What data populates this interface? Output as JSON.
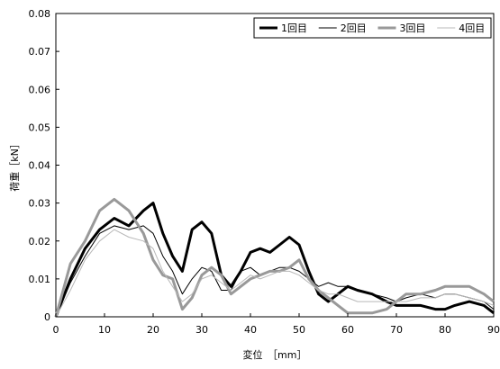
{
  "chart_data": {
    "type": "line",
    "title": "",
    "xlabel": "変位　［mm］",
    "ylabel": "荷重［kN］",
    "xlim": [
      0,
      90
    ],
    "ylim": [
      0,
      0.08
    ],
    "xticks": [
      "0",
      "10",
      "20",
      "30",
      "40",
      "50",
      "60",
      "70",
      "80",
      "90"
    ],
    "yticks": [
      "0",
      "0.01",
      "0.02",
      "0.03",
      "0.04",
      "0.05",
      "0.06",
      "0.07",
      "0.08"
    ],
    "grid": false,
    "legend_position": "top-right",
    "series": [
      {
        "name": "1回目",
        "color": "#000000",
        "x": [
          0,
          3,
          6,
          9,
          12,
          15,
          18,
          20,
          22,
          24,
          26,
          28,
          30,
          32,
          34,
          36,
          38,
          40,
          42,
          44,
          46,
          48,
          50,
          52,
          54,
          56,
          58,
          60,
          62,
          65,
          68,
          70,
          72,
          75,
          78,
          80,
          82,
          85,
          88,
          90
        ],
        "y": [
          0,
          0.01,
          0.018,
          0.023,
          0.026,
          0.024,
          0.028,
          0.03,
          0.022,
          0.016,
          0.012,
          0.023,
          0.025,
          0.022,
          0.011,
          0.008,
          0.012,
          0.017,
          0.018,
          0.017,
          0.019,
          0.021,
          0.019,
          0.012,
          0.006,
          0.004,
          0.006,
          0.008,
          0.007,
          0.006,
          0.004,
          0.003,
          0.003,
          0.003,
          0.002,
          0.002,
          0.003,
          0.004,
          0.003,
          0.001
        ]
      },
      {
        "name": "2回目",
        "color": "#000000",
        "x": [
          0,
          3,
          6,
          9,
          12,
          15,
          18,
          20,
          22,
          24,
          26,
          28,
          30,
          32,
          34,
          36,
          38,
          40,
          42,
          44,
          46,
          48,
          50,
          52,
          54,
          56,
          58,
          60,
          62,
          65,
          68,
          70,
          72,
          75,
          78,
          80,
          82,
          85,
          88,
          90
        ],
        "y": [
          0,
          0.009,
          0.016,
          0.022,
          0.024,
          0.023,
          0.024,
          0.022,
          0.016,
          0.012,
          0.006,
          0.01,
          0.013,
          0.012,
          0.007,
          0.007,
          0.012,
          0.013,
          0.011,
          0.012,
          0.013,
          0.013,
          0.012,
          0.01,
          0.008,
          0.009,
          0.008,
          0.008,
          0.007,
          0.006,
          0.005,
          0.004,
          0.005,
          0.006,
          0.005,
          0.006,
          0.006,
          0.005,
          0.004,
          0.002
        ]
      },
      {
        "name": "3回目",
        "color": "#999999",
        "x": [
          0,
          3,
          6,
          9,
          12,
          15,
          18,
          20,
          22,
          24,
          26,
          28,
          30,
          32,
          34,
          36,
          38,
          40,
          42,
          44,
          46,
          48,
          50,
          52,
          54,
          56,
          58,
          60,
          62,
          65,
          68,
          70,
          72,
          75,
          78,
          80,
          82,
          85,
          88,
          90
        ],
        "y": [
          0,
          0.014,
          0.02,
          0.028,
          0.031,
          0.028,
          0.022,
          0.015,
          0.011,
          0.01,
          0.002,
          0.005,
          0.011,
          0.013,
          0.011,
          0.006,
          0.008,
          0.01,
          0.011,
          0.012,
          0.012,
          0.013,
          0.015,
          0.01,
          0.007,
          0.005,
          0.003,
          0.001,
          0.001,
          0.001,
          0.002,
          0.004,
          0.006,
          0.006,
          0.007,
          0.008,
          0.008,
          0.008,
          0.006,
          0.004
        ]
      },
      {
        "name": "4回目",
        "color": "#b8b8b8",
        "x": [
          0,
          3,
          6,
          9,
          12,
          15,
          18,
          20,
          22,
          24,
          26,
          28,
          30,
          32,
          34,
          36,
          38,
          40,
          42,
          44,
          46,
          48,
          50,
          52,
          54,
          56,
          58,
          60,
          62,
          65,
          68,
          70,
          72,
          75,
          78,
          80,
          82,
          85,
          88,
          90
        ],
        "y": [
          0,
          0.007,
          0.015,
          0.02,
          0.023,
          0.021,
          0.02,
          0.018,
          0.012,
          0.008,
          0.004,
          0.006,
          0.01,
          0.011,
          0.009,
          0.007,
          0.009,
          0.011,
          0.01,
          0.011,
          0.012,
          0.012,
          0.011,
          0.009,
          0.007,
          0.006,
          0.006,
          0.005,
          0.004,
          0.004,
          0.004,
          0.004,
          0.004,
          0.005,
          0.005,
          0.006,
          0.006,
          0.005,
          0.004,
          0.003
        ]
      }
    ]
  }
}
